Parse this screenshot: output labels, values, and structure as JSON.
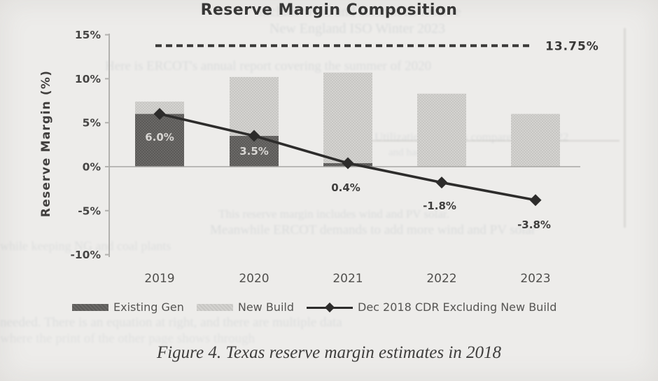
{
  "page": {
    "background": "#edecea"
  },
  "chart": {
    "title": "Reserve Margin Composition",
    "y_axis_title": "Reserve Margin (%)"
  },
  "chart_data": {
    "type": "bar",
    "title": "Reserve Margin Composition",
    "xlabel": "",
    "ylabel": "Reserve Margin (%)",
    "ylim": [
      -10,
      15
    ],
    "grid": false,
    "legend_position": "bottom",
    "categories": [
      "2019",
      "2020",
      "2021",
      "2022",
      "2023"
    ],
    "series": [
      {
        "name": "Existing Gen",
        "type": "bar",
        "stacked": true,
        "color": "#5b5a58",
        "values": [
          6.0,
          3.5,
          0.4,
          0,
          0
        ]
      },
      {
        "name": "New Build",
        "type": "bar",
        "stacked": true,
        "color": "#c7c6c3",
        "values": [
          1.4,
          6.7,
          10.3,
          8.3,
          6.0
        ]
      },
      {
        "name": "Dec 2018 CDR Excluding New Build",
        "type": "line",
        "marker": "diamond",
        "color": "#2d2c2b",
        "values": [
          6.0,
          3.5,
          0.4,
          -1.8,
          -3.8
        ],
        "point_labels": [
          "6.0%",
          "3.5%",
          "0.4%",
          "-1.8%",
          "-3.8%"
        ]
      }
    ],
    "threshold": {
      "value": 13.75,
      "label": "13.75%",
      "style": "dashed"
    },
    "y_ticks": [
      {
        "label": "15%",
        "value": 15
      },
      {
        "label": "10%",
        "value": 10
      },
      {
        "label": "5%",
        "value": 5
      },
      {
        "label": "0%",
        "value": 0
      },
      {
        "label": "-5%",
        "value": -5
      },
      {
        "label": "-10%",
        "value": -10
      }
    ]
  },
  "legend": {
    "items": [
      {
        "label": "Existing Gen",
        "swatch": "dark-bar"
      },
      {
        "label": "New Build",
        "swatch": "light-bar"
      },
      {
        "label": "Dec 2018 CDR Excluding New Build",
        "swatch": "line-diamond"
      }
    ]
  },
  "caption": "Figure 4. Texas reserve margin estimates in 2018",
  "ghost_text": {
    "note": "faint bleed-through text from reverse page of the scan, mostly illegible",
    "lines": [
      {
        "text": "include wind and solar in its reserve"
      },
      {
        "text": "New England ISO Winter 2023"
      },
      {
        "text": "Here is ERCOT's annual report covering the summer of 2020"
      },
      {
        "text": "Utilization Margins compared with 2022"
      },
      {
        "text": "and had over 36.2"
      },
      {
        "text": "This reserve margin includes wind and PV solar."
      },
      {
        "text": "Meanwhile ERCOT demands to add more wind and PV solar"
      },
      {
        "text": "while keeping NG and coal plants"
      },
      {
        "text": "needed. There is an equation at right, and there are multiple data"
      },
      {
        "text": "where the print of the other page shows through"
      }
    ]
  }
}
